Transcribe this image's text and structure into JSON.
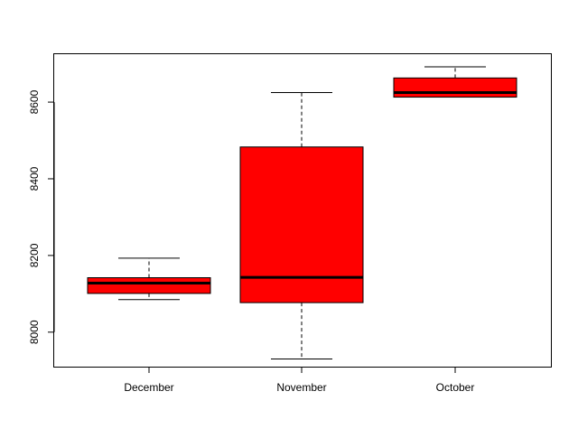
{
  "chart_data": {
    "type": "boxplot",
    "categories": [
      "December",
      "November",
      "October"
    ],
    "boxes": [
      {
        "category": "December",
        "whisker_low": 8085,
        "q1": 8101,
        "median": 8128,
        "q3": 8142,
        "whisker_high": 8193
      },
      {
        "category": "November",
        "whisker_low": 7930,
        "q1": 8077,
        "median": 8143,
        "q3": 8483,
        "whisker_high": 8625
      },
      {
        "category": "October",
        "whisker_low": 8613,
        "q1": 8613,
        "median": 8625,
        "q3": 8663,
        "whisker_high": 8692
      }
    ],
    "y_ticks": [
      8000,
      8200,
      8400,
      8600
    ],
    "ylim": [
      7910,
      8725
    ],
    "title": "",
    "xlabel": "",
    "ylabel": "",
    "grid": false,
    "colors": {
      "box_fill": "#ff0000",
      "box_stroke": "#000000",
      "median": "#000000",
      "axis": "#000000"
    }
  }
}
